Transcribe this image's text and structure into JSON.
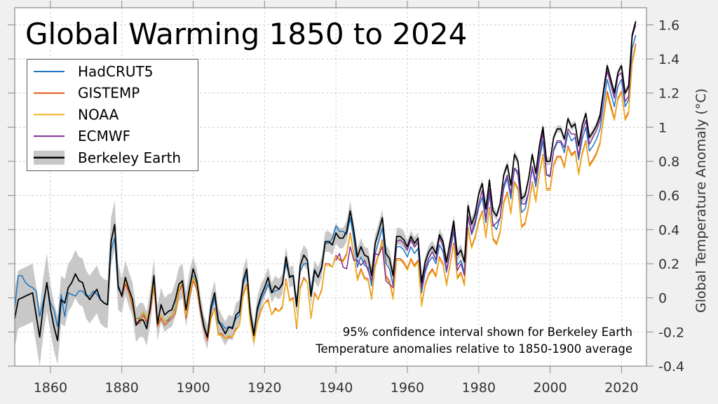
{
  "chart_data": {
    "type": "line",
    "title": "Global Warming 1850 to 2024",
    "xlabel": "",
    "ylabel": "Global Temperature Anomaly (°C)",
    "xlim": [
      1850,
      2027
    ],
    "ylim": [
      -0.4,
      1.7
    ],
    "xticks": [
      1860,
      1880,
      1900,
      1920,
      1940,
      1960,
      1980,
      2000,
      2020
    ],
    "yticks": [
      -0.4,
      -0.2,
      0,
      0.2,
      0.4,
      0.6,
      0.8,
      1,
      1.2,
      1.4,
      1.6
    ],
    "ytick_labels": [
      "-0.4",
      "-0.2",
      "0",
      "0.2",
      "0.4",
      "0.6",
      "0.8",
      "1",
      "1.2",
      "1.4",
      "1.6"
    ],
    "grid": true,
    "legend_position": "top-left",
    "y_axis_side": "right",
    "annotations": [
      "95% confidence interval shown for Berkeley Earth",
      "Temperature anomalies relative to 1850-1900 average"
    ],
    "series": [
      {
        "name": "HadCRUT5",
        "color": "#1f77c4",
        "start_year": 1850,
        "values": [
          -0.06,
          0.13,
          0.13,
          0.09,
          0.07,
          0.06,
          0.04,
          -0.11,
          -0.02,
          0.08,
          -0.03,
          -0.07,
          -0.17,
          0.02,
          -0.11,
          0.03,
          0.02,
          0.01,
          0.04,
          0.04,
          0.01,
          0.01,
          0.04,
          0.02,
          -0.01,
          -0.03,
          -0.04,
          0.28,
          0.35,
          0.05,
          0.02,
          0.1,
          0.04,
          -0.05,
          -0.12,
          -0.12,
          -0.08,
          -0.15,
          -0.06,
          0.08,
          -0.16,
          -0.1,
          -0.14,
          -0.13,
          -0.1,
          -0.06,
          0.06,
          0.08,
          -0.11,
          0.03,
          0.13,
          0.08,
          -0.05,
          -0.15,
          -0.23,
          -0.08,
          0.0,
          -0.15,
          -0.15,
          -0.18,
          -0.17,
          -0.17,
          -0.12,
          -0.1,
          0.08,
          0.14,
          -0.08,
          -0.2,
          -0.08,
          -0.01,
          0.03,
          0.08,
          0.03,
          0.04,
          0.05,
          0.09,
          0.2,
          0.13,
          0.13,
          -0.02,
          0.16,
          0.2,
          0.2,
          0.04,
          0.17,
          0.12,
          0.17,
          0.32,
          0.32,
          0.35,
          0.42,
          0.39,
          0.39,
          0.37,
          0.47,
          0.34,
          0.18,
          0.24,
          0.19,
          0.18,
          0.07,
          0.26,
          0.33,
          0.41,
          0.2,
          0.17,
          0.07,
          0.3,
          0.3,
          0.28,
          0.24,
          0.3,
          0.26,
          0.29,
          0.03,
          0.15,
          0.21,
          0.24,
          0.2,
          0.31,
          0.27,
          0.15,
          0.27,
          0.39,
          0.19,
          0.22,
          0.15,
          0.48,
          0.37,
          0.43,
          0.53,
          0.59,
          0.44,
          0.61,
          0.43,
          0.4,
          0.47,
          0.64,
          0.7,
          0.58,
          0.76,
          0.72,
          0.5,
          0.52,
          0.62,
          0.76,
          0.65,
          0.81,
          0.92,
          0.72,
          0.72,
          0.86,
          0.91,
          0.91,
          0.85,
          0.97,
          0.92,
          0.94,
          0.81,
          0.93,
          1.0,
          0.86,
          0.89,
          0.93,
          0.99,
          1.14,
          1.28,
          1.2,
          1.12,
          1.24,
          1.28,
          1.12,
          1.16,
          1.46,
          1.54
        ]
      },
      {
        "name": "GISTEMP",
        "color": "#e0561e",
        "start_year": 1880,
        "values": [
          0.0,
          0.08,
          0.03,
          -0.05,
          -0.14,
          -0.15,
          -0.1,
          -0.14,
          -0.08,
          0.07,
          -0.17,
          -0.12,
          -0.16,
          -0.14,
          -0.12,
          -0.09,
          0.04,
          0.07,
          -0.12,
          0.0,
          0.1,
          0.05,
          -0.08,
          -0.18,
          -0.25,
          -0.12,
          -0.06,
          -0.21,
          -0.21,
          -0.24,
          -0.23,
          -0.23,
          -0.18,
          -0.16,
          0.02,
          0.08,
          -0.14,
          -0.26,
          -0.14,
          -0.07,
          -0.03,
          -0.01,
          -0.1,
          -0.06,
          -0.08,
          -0.05,
          0.11,
          -0.01,
          0.0,
          -0.18,
          0.06,
          0.12,
          0.09,
          -0.12,
          0.03,
          -0.01,
          0.05,
          0.2,
          0.2,
          0.18,
          0.25,
          0.22,
          0.22,
          0.26,
          0.38,
          0.26,
          0.11,
          0.17,
          0.12,
          0.11,
          0.0,
          0.19,
          0.26,
          0.34,
          0.13,
          0.1,
          0.0,
          0.23,
          0.23,
          0.21,
          0.17,
          0.23,
          0.19,
          0.22,
          -0.04,
          0.08,
          0.14,
          0.17,
          0.13,
          0.24,
          0.2,
          0.08,
          0.2,
          0.32,
          0.12,
          0.15,
          0.08,
          0.41,
          0.3,
          0.36,
          0.45,
          0.51,
          0.36,
          0.53,
          0.35,
          0.32,
          0.39,
          0.56,
          0.62,
          0.5,
          0.68,
          0.64,
          0.42,
          0.44,
          0.54,
          0.68,
          0.57,
          0.73,
          0.84,
          0.64,
          0.64,
          0.78,
          0.83,
          0.83,
          0.77,
          0.89,
          0.84,
          0.86,
          0.73,
          0.85,
          0.92,
          0.78,
          0.81,
          0.85,
          0.91,
          1.07,
          1.21,
          1.13,
          1.05,
          1.17,
          1.21,
          1.05,
          1.09,
          1.38,
          1.49
        ]
      },
      {
        "name": "NOAA",
        "color": "#efb21e",
        "start_year": 1880,
        "values": [
          0.02,
          0.1,
          0.05,
          -0.03,
          -0.12,
          -0.13,
          -0.08,
          -0.12,
          -0.06,
          0.09,
          -0.15,
          -0.1,
          -0.14,
          -0.12,
          -0.1,
          -0.07,
          0.06,
          0.09,
          -0.1,
          0.02,
          0.12,
          0.07,
          -0.06,
          -0.16,
          -0.23,
          -0.1,
          -0.07,
          -0.22,
          -0.22,
          -0.24,
          -0.22,
          -0.23,
          -0.19,
          -0.16,
          0.01,
          0.07,
          -0.15,
          -0.26,
          -0.15,
          -0.08,
          -0.03,
          -0.02,
          -0.1,
          -0.07,
          -0.08,
          -0.06,
          0.1,
          -0.02,
          -0.01,
          -0.17,
          0.05,
          0.11,
          0.09,
          -0.12,
          0.02,
          -0.01,
          0.04,
          0.19,
          0.19,
          0.18,
          0.24,
          0.23,
          0.21,
          0.25,
          0.37,
          0.25,
          0.1,
          0.16,
          0.11,
          0.1,
          -0.01,
          0.18,
          0.25,
          0.33,
          0.12,
          0.09,
          -0.01,
          0.22,
          0.22,
          0.2,
          0.16,
          0.22,
          0.18,
          0.21,
          -0.05,
          0.07,
          0.13,
          0.16,
          0.12,
          0.23,
          0.19,
          0.07,
          0.19,
          0.31,
          0.11,
          0.14,
          0.07,
          0.4,
          0.29,
          0.35,
          0.44,
          0.5,
          0.35,
          0.52,
          0.34,
          0.31,
          0.38,
          0.55,
          0.61,
          0.49,
          0.67,
          0.63,
          0.41,
          0.43,
          0.53,
          0.67,
          0.56,
          0.72,
          0.83,
          0.63,
          0.63,
          0.77,
          0.82,
          0.82,
          0.76,
          0.88,
          0.83,
          0.85,
          0.72,
          0.84,
          0.91,
          0.77,
          0.8,
          0.84,
          0.9,
          1.05,
          1.19,
          1.11,
          1.04,
          1.16,
          1.2,
          1.04,
          1.08,
          1.37,
          1.47
        ]
      },
      {
        "name": "ECMWF",
        "color": "#7e2f8e",
        "start_year": 1940,
        "values": [
          0.22,
          0.26,
          0.18,
          0.17,
          0.3,
          0.22,
          0.22,
          0.19,
          0.22,
          0.16,
          0.1,
          0.26,
          0.25,
          0.3,
          0.1,
          0.08,
          0.06,
          0.33,
          0.34,
          0.32,
          0.28,
          0.34,
          0.3,
          0.33,
          0.06,
          0.17,
          0.23,
          0.27,
          0.22,
          0.36,
          0.3,
          0.16,
          0.27,
          0.43,
          0.16,
          0.2,
          0.13,
          0.48,
          0.38,
          0.45,
          0.55,
          0.63,
          0.46,
          0.64,
          0.42,
          0.44,
          0.47,
          0.66,
          0.72,
          0.61,
          0.76,
          0.74,
          0.55,
          0.55,
          0.62,
          0.77,
          0.68,
          0.83,
          0.97,
          0.72,
          0.71,
          0.87,
          0.92,
          0.92,
          0.88,
          0.99,
          0.96,
          0.96,
          0.83,
          0.97,
          1.04,
          0.9,
          0.94,
          0.98,
          1.04,
          1.2,
          1.33,
          1.25,
          1.17,
          1.3,
          1.32,
          1.15,
          1.18,
          1.53,
          1.6
        ]
      },
      {
        "name": "Berkeley Earth",
        "color": "#000000",
        "band_color": "#c8c8c8",
        "start_year": 1850,
        "values": [
          -0.12,
          -0.01,
          0.0,
          0.01,
          0.02,
          0.03,
          -0.1,
          -0.23,
          -0.05,
          0.09,
          -0.06,
          -0.17,
          -0.25,
          -0.01,
          -0.03,
          0.06,
          0.09,
          0.14,
          0.1,
          0.09,
          0.02,
          -0.01,
          0.02,
          0.05,
          -0.01,
          -0.03,
          -0.04,
          0.33,
          0.43,
          0.07,
          0.01,
          0.12,
          0.05,
          -0.01,
          -0.16,
          -0.13,
          -0.13,
          -0.18,
          -0.05,
          0.13,
          -0.15,
          -0.04,
          -0.1,
          -0.08,
          -0.07,
          -0.01,
          0.08,
          0.1,
          -0.07,
          0.06,
          0.17,
          0.1,
          -0.05,
          -0.17,
          -0.23,
          -0.05,
          0.03,
          -0.13,
          -0.17,
          -0.21,
          -0.17,
          -0.18,
          -0.1,
          -0.08,
          0.1,
          0.17,
          -0.09,
          -0.22,
          -0.06,
          0.01,
          0.06,
          0.12,
          0.03,
          0.07,
          0.05,
          0.08,
          0.24,
          0.12,
          0.13,
          -0.05,
          0.19,
          0.25,
          0.22,
          0.01,
          0.16,
          0.12,
          0.18,
          0.33,
          0.33,
          0.31,
          0.38,
          0.35,
          0.35,
          0.39,
          0.51,
          0.39,
          0.24,
          0.3,
          0.25,
          0.24,
          0.13,
          0.32,
          0.39,
          0.47,
          0.26,
          0.23,
          0.13,
          0.36,
          0.36,
          0.34,
          0.3,
          0.36,
          0.32,
          0.35,
          0.09,
          0.21,
          0.27,
          0.3,
          0.26,
          0.37,
          0.33,
          0.21,
          0.33,
          0.45,
          0.25,
          0.28,
          0.21,
          0.54,
          0.43,
          0.49,
          0.61,
          0.67,
          0.52,
          0.69,
          0.51,
          0.48,
          0.55,
          0.72,
          0.78,
          0.66,
          0.84,
          0.8,
          0.58,
          0.6,
          0.7,
          0.84,
          0.73,
          0.89,
          1.0,
          0.8,
          0.8,
          0.94,
          0.99,
          0.99,
          0.93,
          1.05,
          1.0,
          1.02,
          0.89,
          1.01,
          1.08,
          0.94,
          0.97,
          1.01,
          1.07,
          1.22,
          1.36,
          1.28,
          1.2,
          1.32,
          1.36,
          1.2,
          1.24,
          1.54,
          1.62
        ],
        "uncertainty_95": [
          0.17,
          0.17,
          0.17,
          0.17,
          0.17,
          0.17,
          0.17,
          0.17,
          0.17,
          0.17,
          0.14,
          0.14,
          0.14,
          0.14,
          0.14,
          0.14,
          0.14,
          0.14,
          0.14,
          0.14,
          0.14,
          0.14,
          0.14,
          0.14,
          0.14,
          0.14,
          0.14,
          0.14,
          0.14,
          0.14,
          0.1,
          0.1,
          0.1,
          0.1,
          0.1,
          0.1,
          0.1,
          0.1,
          0.1,
          0.1,
          0.1,
          0.1,
          0.1,
          0.1,
          0.1,
          0.1,
          0.1,
          0.1,
          0.1,
          0.1,
          0.07,
          0.07,
          0.07,
          0.07,
          0.07,
          0.07,
          0.07,
          0.07,
          0.07,
          0.07,
          0.07,
          0.07,
          0.07,
          0.07,
          0.07,
          0.07,
          0.07,
          0.07,
          0.07,
          0.07,
          0.06,
          0.06,
          0.06,
          0.06,
          0.06,
          0.06,
          0.06,
          0.06,
          0.06,
          0.06,
          0.06,
          0.06,
          0.06,
          0.06,
          0.06,
          0.06,
          0.06,
          0.06,
          0.06,
          0.06,
          0.06,
          0.06,
          0.06,
          0.06,
          0.06,
          0.05,
          0.05,
          0.05,
          0.05,
          0.05,
          0.05,
          0.05,
          0.05,
          0.05,
          0.05,
          0.05,
          0.05,
          0.05,
          0.05,
          0.05,
          0.035,
          0.035,
          0.035,
          0.035,
          0.035,
          0.035,
          0.035,
          0.035,
          0.035,
          0.035,
          0.035,
          0.035,
          0.035,
          0.035,
          0.035,
          0.035,
          0.035,
          0.035,
          0.035,
          0.035,
          0.025,
          0.025,
          0.025,
          0.025,
          0.025,
          0.025,
          0.025,
          0.025,
          0.025,
          0.025,
          0.025,
          0.025,
          0.025,
          0.025,
          0.025,
          0.025,
          0.025,
          0.025,
          0.025,
          0.025,
          0.02,
          0.02,
          0.02,
          0.02,
          0.02,
          0.02,
          0.02,
          0.02,
          0.02,
          0.02,
          0.02,
          0.02,
          0.02,
          0.02,
          0.02,
          0.02,
          0.02,
          0.02,
          0.02,
          0.02,
          0.02,
          0.02,
          0.02,
          0.02,
          0.02
        ]
      }
    ]
  }
}
